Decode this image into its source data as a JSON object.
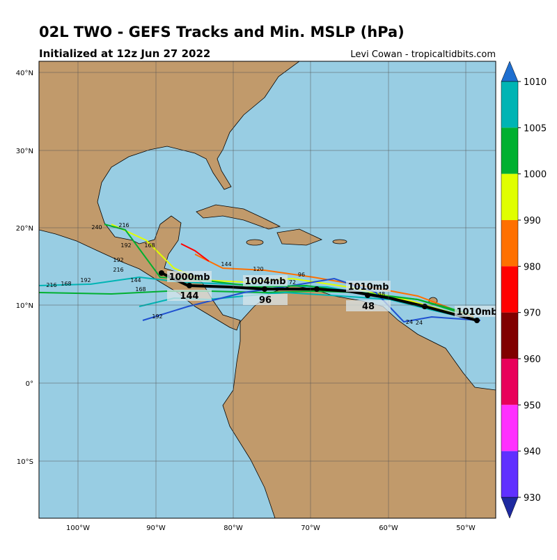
{
  "header": {
    "title": "02L TWO - GEFS Tracks and Min. MSLP (hPa)",
    "subtitle": "Initialized at 12z Jun 27 2022",
    "credit": "Levi Cowan - tropicaltidbits.com"
  },
  "map": {
    "lon_labels": [
      "100°W",
      "90°W",
      "80°W",
      "70°W",
      "60°W",
      "50°W"
    ],
    "lat_labels": [
      "40°N",
      "30°N",
      "20°N",
      "10°N",
      "0°",
      "10°S"
    ],
    "track_labels": [
      "1000mb",
      "1004mb",
      "1010mb",
      "1010mb",
      "144",
      "96",
      "48"
    ],
    "hour_labels": [
      "240",
      "216",
      "192",
      "168",
      "144",
      "120",
      "96",
      "72",
      "48",
      "24",
      "240",
      "216",
      "192",
      "168",
      "144",
      "192",
      "216",
      "168",
      "24",
      "192"
    ]
  },
  "colorbar": {
    "labels": [
      "1010",
      "1005",
      "1000",
      "990",
      "980",
      "970",
      "960",
      "950",
      "940",
      "930"
    ]
  }
}
